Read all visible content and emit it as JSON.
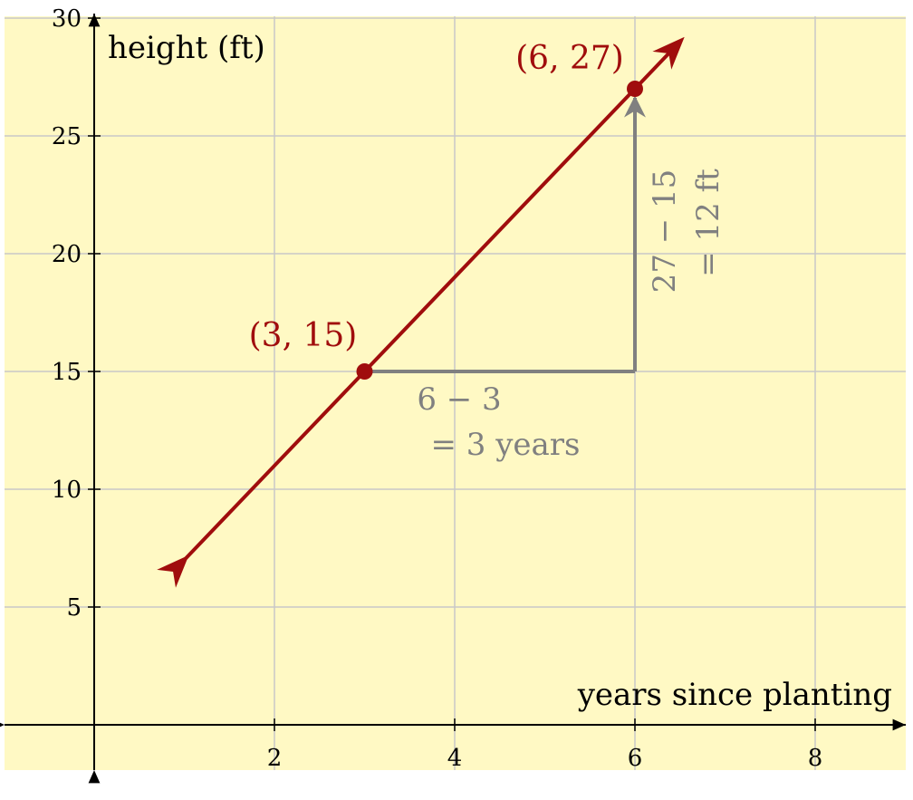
{
  "chart_data": {
    "type": "line",
    "xlabel": "years since planting",
    "ylabel": "height (ft)",
    "xlim": [
      -1,
      9
    ],
    "ylim": [
      -2,
      30
    ],
    "x_ticks": [
      2,
      4,
      6,
      8
    ],
    "y_ticks": [
      5,
      10,
      15,
      20,
      25,
      30
    ],
    "x_tick_labels": [
      "2",
      "4",
      "6",
      "8"
    ],
    "y_tick_labels": [
      "5",
      "10",
      "15",
      "20",
      "25",
      "30"
    ],
    "grid": true,
    "line": {
      "x1": 1,
      "y1": 7,
      "x2": 6.5,
      "y2": 29
    },
    "points": [
      {
        "x": 3,
        "y": 15,
        "label": "(3, 15)"
      },
      {
        "x": 6,
        "y": 27,
        "label": "(6, 27)"
      }
    ],
    "annotations": {
      "run_line1": "6 − 3",
      "run_line2": "= 3 years",
      "rise_line1": "27 − 15",
      "rise_line2": "= 12 ft"
    }
  },
  "colors": {
    "background": "#fff9c4",
    "grid": "#c8c8c8",
    "line": "#a00d0d",
    "annotation": "#808080",
    "axis": "#000000"
  }
}
